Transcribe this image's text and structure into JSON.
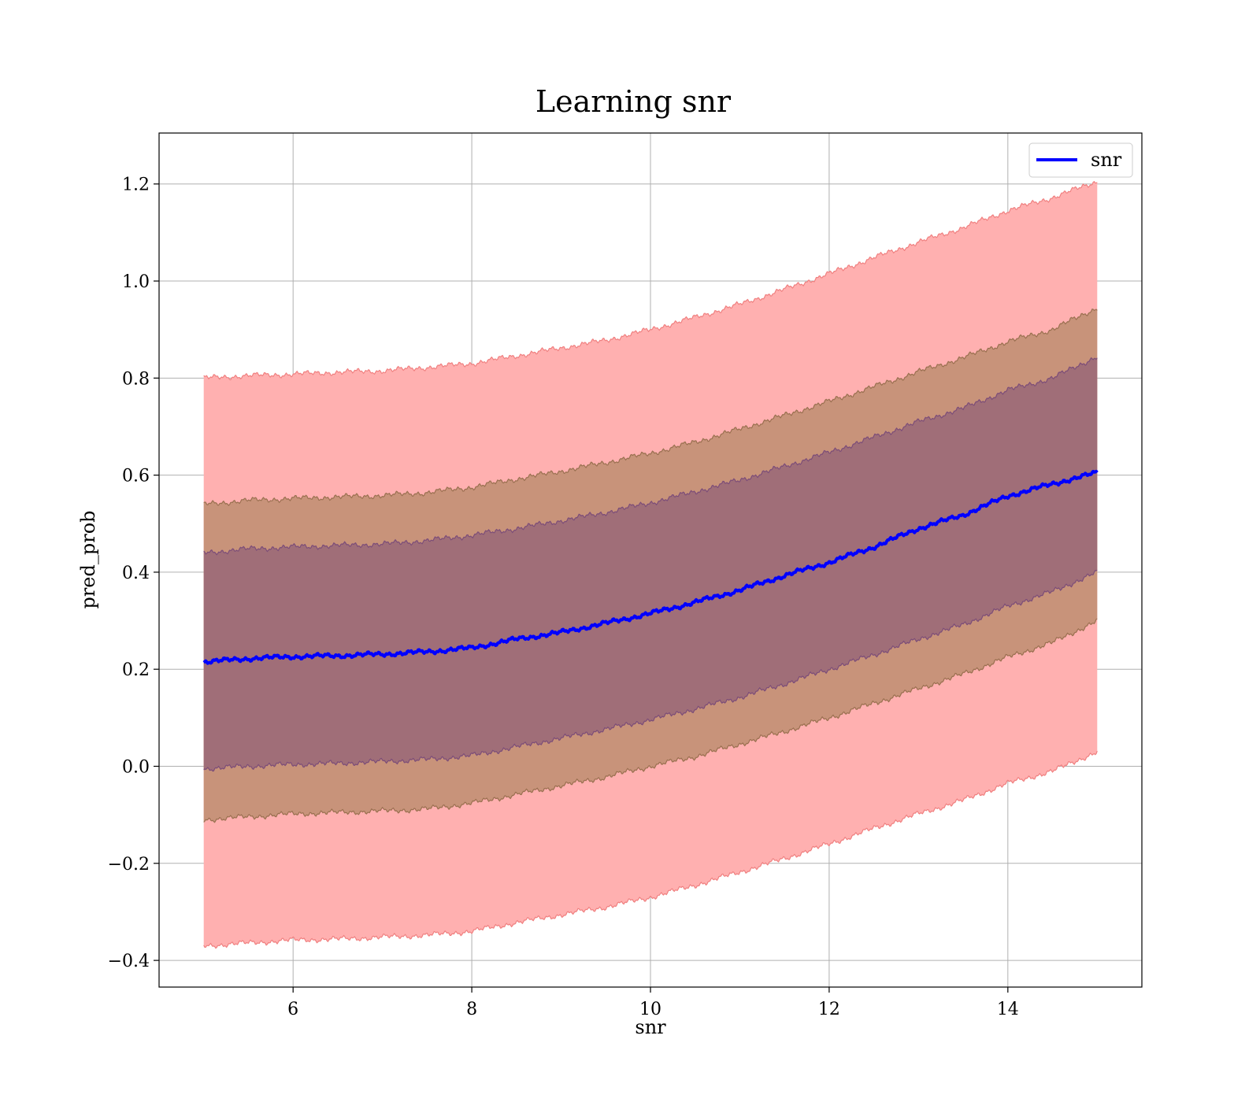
{
  "chart_data": {
    "type": "line",
    "title": "Learning snr",
    "xlabel": "snr",
    "ylabel": "pred_prob",
    "xlim": [
      4.5,
      15.5
    ],
    "ylim": [
      -0.455,
      1.305
    ],
    "xticks": [
      6,
      8,
      10,
      12,
      14
    ],
    "xtick_labels": [
      "6",
      "8",
      "10",
      "12",
      "14"
    ],
    "yticks": [
      -0.4,
      -0.2,
      0.0,
      0.2,
      0.4,
      0.6,
      0.8,
      1.0,
      1.2
    ],
    "ytick_labels": [
      "−0.4",
      "−0.2",
      "0.0",
      "0.2",
      "0.4",
      "0.6",
      "0.8",
      "1.0",
      "1.2"
    ],
    "grid": true,
    "legend_position": "top-right",
    "colors": {
      "mean_line": "#0000ff",
      "band_outer": "#ffb0b0",
      "band_outer_edge": "#f08080",
      "band_middle": "#c8937a",
      "band_middle_edge": "#9a7050",
      "band_inner": "#a06e78",
      "band_inner_edge": "#7c4d78"
    },
    "series": [
      {
        "name": "snr",
        "x": [
          5,
          5.5,
          6,
          6.5,
          7,
          7.5,
          8,
          8.5,
          9,
          9.5,
          10,
          10.5,
          11,
          11.5,
          12,
          12.5,
          13,
          13.5,
          14,
          14.5,
          15
        ],
        "y": [
          0.215,
          0.222,
          0.226,
          0.228,
          0.231,
          0.236,
          0.244,
          0.262,
          0.276,
          0.295,
          0.315,
          0.338,
          0.363,
          0.393,
          0.42,
          0.452,
          0.49,
          0.518,
          0.557,
          0.582,
          0.605
        ]
      }
    ],
    "bands": [
      {
        "level": "outer",
        "upper": [
          0.8,
          0.805,
          0.808,
          0.812,
          0.815,
          0.822,
          0.83,
          0.846,
          0.862,
          0.878,
          0.9,
          0.925,
          0.952,
          0.983,
          1.015,
          1.048,
          1.08,
          1.11,
          1.145,
          1.172,
          1.205
        ],
        "lower": [
          -0.37,
          -0.364,
          -0.358,
          -0.356,
          -0.352,
          -0.348,
          -0.34,
          -0.322,
          -0.306,
          -0.29,
          -0.27,
          -0.245,
          -0.218,
          -0.19,
          -0.16,
          -0.128,
          -0.098,
          -0.07,
          -0.035,
          -0.01,
          0.03
        ]
      },
      {
        "level": "middle",
        "upper": [
          0.54,
          0.548,
          0.552,
          0.555,
          0.558,
          0.564,
          0.575,
          0.592,
          0.608,
          0.626,
          0.645,
          0.668,
          0.695,
          0.723,
          0.752,
          0.782,
          0.813,
          0.842,
          0.875,
          0.9,
          0.945
        ],
        "lower": [
          -0.11,
          -0.104,
          -0.098,
          -0.095,
          -0.092,
          -0.088,
          -0.076,
          -0.058,
          -0.04,
          -0.022,
          0.0,
          0.02,
          0.046,
          0.072,
          0.1,
          0.13,
          0.16,
          0.19,
          0.225,
          0.255,
          0.3
        ]
      },
      {
        "level": "inner",
        "upper": [
          0.44,
          0.448,
          0.452,
          0.455,
          0.458,
          0.465,
          0.476,
          0.49,
          0.506,
          0.523,
          0.543,
          0.566,
          0.59,
          0.618,
          0.647,
          0.678,
          0.71,
          0.738,
          0.775,
          0.8,
          0.845
        ],
        "lower": [
          -0.005,
          0.0,
          0.004,
          0.006,
          0.01,
          0.014,
          0.022,
          0.04,
          0.058,
          0.076,
          0.096,
          0.118,
          0.142,
          0.17,
          0.2,
          0.23,
          0.262,
          0.292,
          0.33,
          0.36,
          0.4
        ]
      }
    ]
  }
}
